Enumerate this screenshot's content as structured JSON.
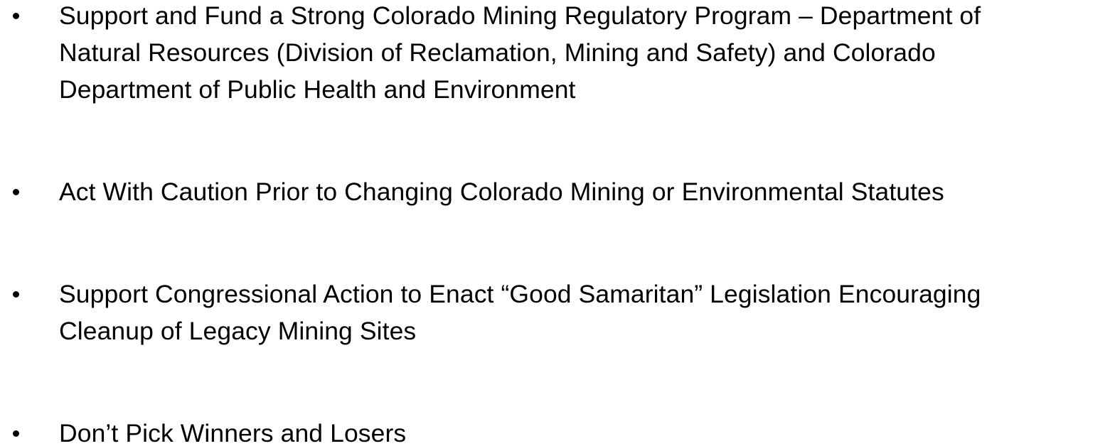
{
  "bullets": [
    {
      "lines": [
        "Support and Fund a Strong Colorado Mining Regulatory Program – Department of",
        "Natural Resources (Division of Reclamation, Mining and Safety) and Colorado",
        "Department of Public Health and Environment"
      ]
    },
    {
      "lines": [
        "Act With Caution Prior to Changing Colorado Mining or Environmental Statutes"
      ]
    },
    {
      "lines": [
        "Support Congressional Action to Enact “Good Samaritan” Legislation Encouraging",
        "Cleanup of Legacy Mining Sites"
      ]
    },
    {
      "lines": [
        "Don’t Pick Winners and Losers"
      ]
    }
  ]
}
